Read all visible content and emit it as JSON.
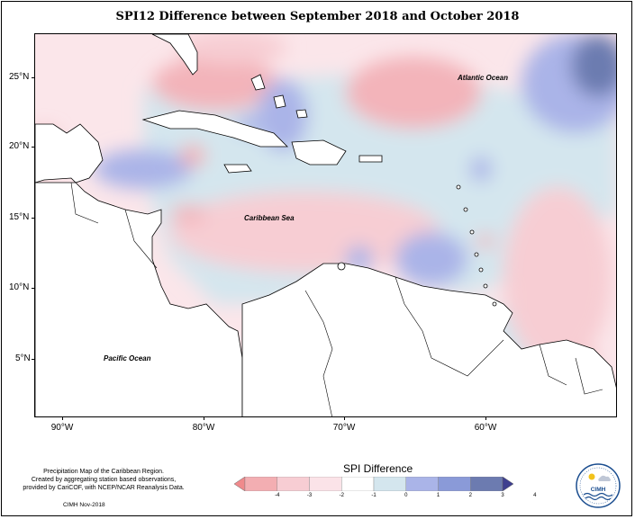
{
  "title": "SPI12 Difference between September 2018 and October 2018",
  "labels": {
    "atlantic": "Atlantic Ocean",
    "caribbean": "Caribbean Sea",
    "pacific": "Pacific Ocean"
  },
  "axes": {
    "lat_ticks": [
      "25°N",
      "20°N",
      "15°N",
      "10°N",
      "5°N"
    ],
    "lon_ticks": [
      "90°W",
      "80°W",
      "70°W",
      "60°W"
    ]
  },
  "footer": {
    "note_line1": "Precipitation Map of the Caribbean Region.",
    "note_line2": "Created by aggregating station based observations,",
    "note_line3": "provided by CariCOF, with NCEP/NCAR Reanalysis Data.",
    "credit": "CIMH Nov-2018"
  },
  "legend": {
    "title": "SPI Difference",
    "ticks": [
      "-4",
      "-3",
      "-2",
      "-1",
      "0",
      "1",
      "2",
      "3",
      "4"
    ],
    "colors": [
      "#f08a8c",
      "#f3aeb2",
      "#f7cdd3",
      "#fbe3e8",
      "#ffffff",
      "#d4e6ee",
      "#aab4e8",
      "#8a9ad8",
      "#6c7bb0",
      "#3e3f8f"
    ]
  },
  "logo": {
    "text": "CIMH"
  }
}
